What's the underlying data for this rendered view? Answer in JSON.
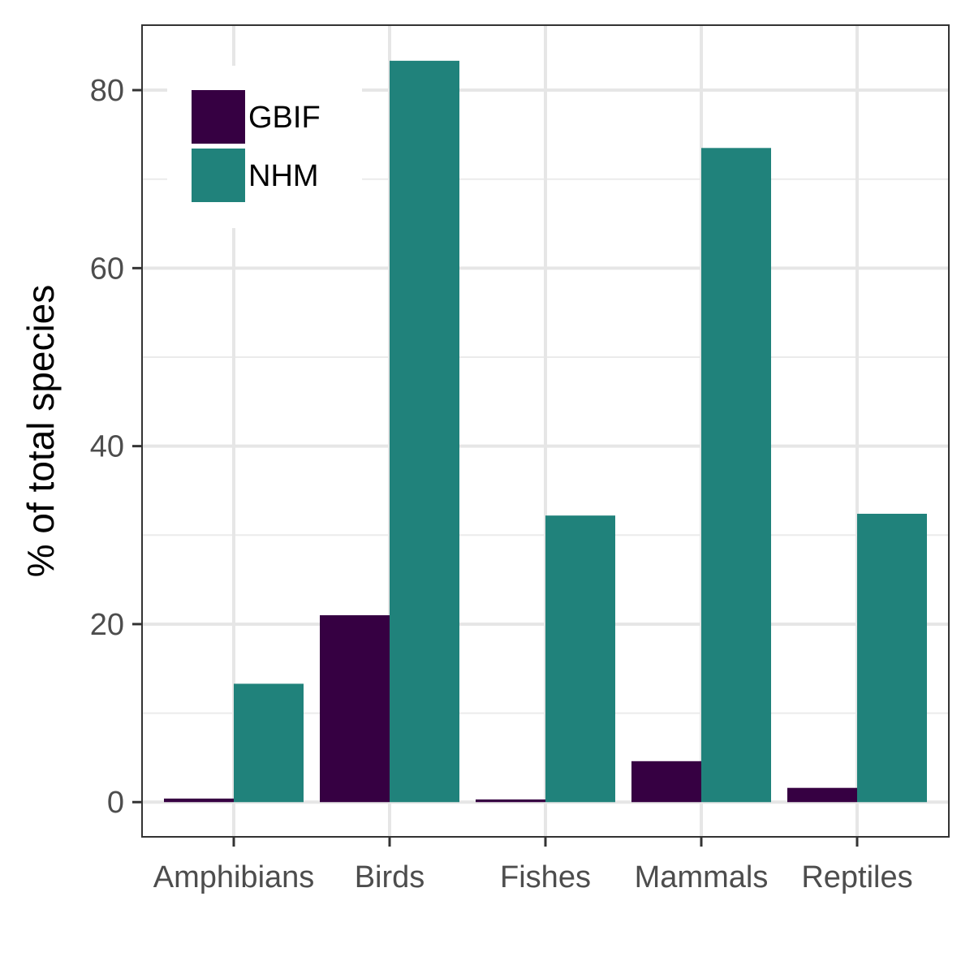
{
  "chart_data": {
    "type": "bar",
    "categories": [
      "Amphibians",
      "Birds",
      "Fishes",
      "Mammals",
      "Reptiles"
    ],
    "series": [
      {
        "name": "GBIF",
        "color": "#440154",
        "values": [
          0.4,
          21.0,
          0.3,
          4.6,
          1.6
        ]
      },
      {
        "name": "NHM",
        "color": "#21908C",
        "values": [
          13.3,
          83.3,
          32.2,
          73.5,
          32.4
        ]
      }
    ],
    "title": "",
    "xlabel": "",
    "ylabel": "% of total species",
    "ylim": [
      -3.9,
      87.3
    ],
    "yticks": [
      0,
      20,
      40,
      60,
      80
    ],
    "grid": true,
    "legend_position": "top-left inside",
    "bar_colors": {
      "GBIF": "#360042",
      "NHM": "#20827B"
    }
  }
}
